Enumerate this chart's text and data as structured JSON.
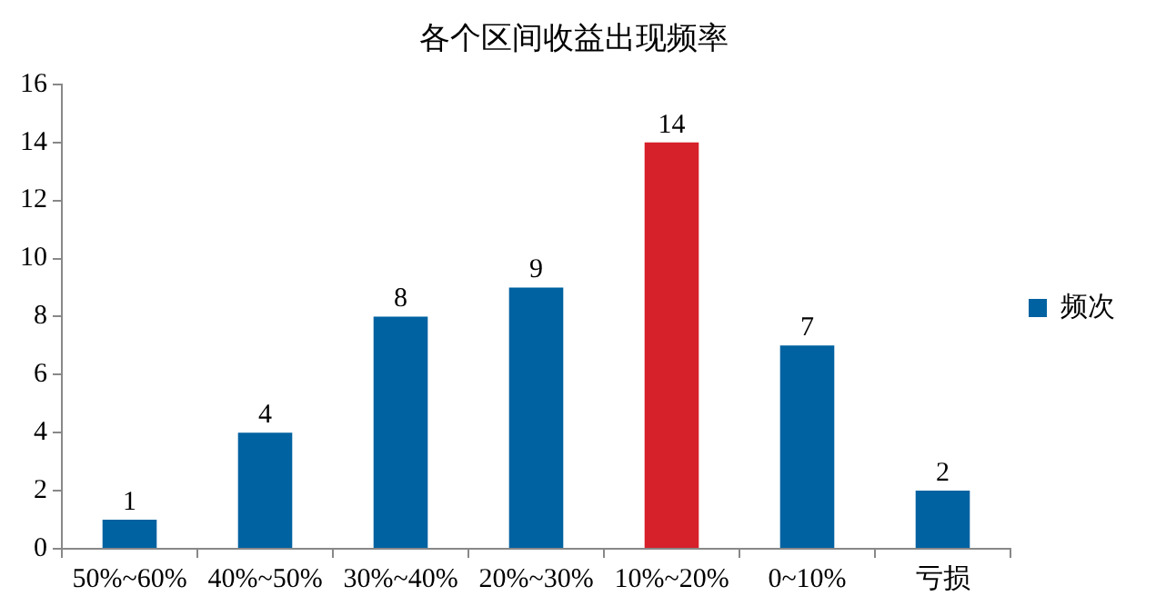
{
  "chart_data": {
    "type": "bar",
    "title": "各个区间收益出现频率",
    "categories": [
      "50%~60%",
      "40%~50%",
      "30%~40%",
      "20%~30%",
      "10%~20%",
      "0~10%",
      "亏损"
    ],
    "series": [
      {
        "name": "频次",
        "color": "#0062a1",
        "colors": [
          "#0062a1",
          "#0062a1",
          "#0062a1",
          "#0062a1",
          "#d6202a",
          "#0062a1",
          "#0062a1"
        ],
        "values": [
          1,
          4,
          8,
          9,
          14,
          7,
          2
        ]
      }
    ],
    "ylim": [
      0,
      16
    ],
    "yticks": [
      0,
      2,
      4,
      6,
      8,
      10,
      12,
      14,
      16
    ],
    "grid": false,
    "legend": "right",
    "data_labels": true
  }
}
